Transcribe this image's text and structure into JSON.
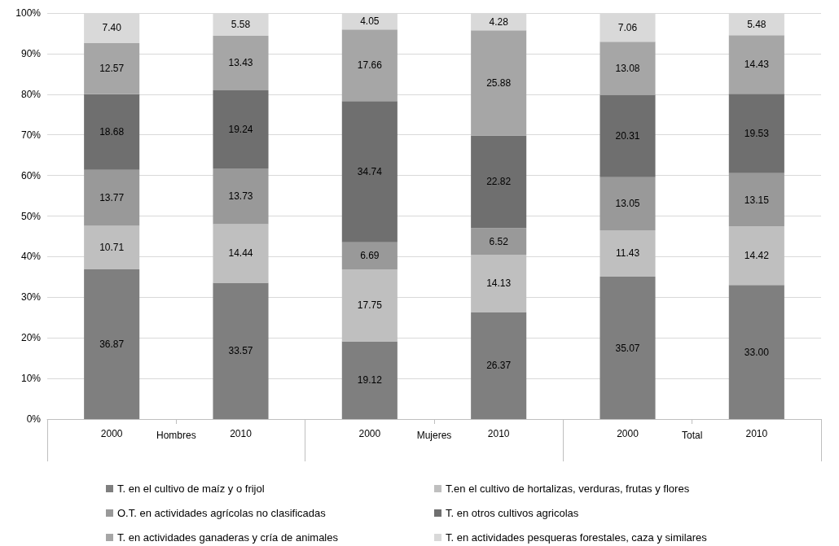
{
  "chart_data": {
    "type": "bar",
    "stacked": true,
    "categories": [
      "2000",
      "2010",
      "2000",
      "2010",
      "2000",
      "2010"
    ],
    "annotations": [
      "Hombres",
      "Mujeres",
      "Total"
    ],
    "ylim": [
      0,
      100
    ],
    "yticks": [
      {
        "value": 0,
        "label": "0%"
      },
      {
        "value": 10,
        "label": "10%"
      },
      {
        "value": 20,
        "label": "20%"
      },
      {
        "value": 30,
        "label": "30%"
      },
      {
        "value": 40,
        "label": "40%"
      },
      {
        "value": 50,
        "label": "50%"
      },
      {
        "value": 60,
        "label": "60%"
      },
      {
        "value": 70,
        "label": "70%"
      },
      {
        "value": 80,
        "label": "80%"
      },
      {
        "value": 90,
        "label": "90%"
      },
      {
        "value": 100,
        "label": "100%"
      }
    ],
    "grid": "y",
    "legend": "bottom",
    "series": [
      {
        "name": "T. en el cultivo de maíz y o frijol",
        "color": "#7f7f7f",
        "values": [
          36.87,
          33.57,
          19.12,
          26.37,
          35.07,
          33.0
        ],
        "value_labels": [
          "36.87",
          "33.57",
          "19.12",
          "26.37",
          "35.07",
          "33.00"
        ]
      },
      {
        "name": "T.en el cultivo de hortalizas, verduras, frutas y flores",
        "color": "#bfbfbf",
        "values": [
          10.71,
          14.44,
          17.75,
          14.13,
          11.43,
          14.42
        ],
        "value_labels": [
          "10.71",
          "14.44",
          "17.75",
          "14.13",
          "11.43",
          "14.42"
        ]
      },
      {
        "name": "O.T. en actividades agrícolas no clasificadas",
        "color": "#999999",
        "values": [
          13.77,
          13.73,
          6.69,
          6.52,
          13.05,
          13.15
        ],
        "value_labels": [
          "13.77",
          "13.73",
          "6.69",
          "6.52",
          "13.05",
          "13.15"
        ]
      },
      {
        "name": "T. en otros cultivos agricolas",
        "color": "#6f6f6f",
        "values": [
          18.68,
          19.24,
          34.74,
          22.82,
          20.31,
          19.53
        ],
        "value_labels": [
          "18.68",
          "19.24",
          "34.74",
          "22.82",
          "20.31",
          "19.53"
        ]
      },
      {
        "name": "T. en actividades ganaderas y cría de animales",
        "color": "#a6a6a6",
        "values": [
          12.57,
          13.43,
          17.66,
          25.88,
          13.08,
          14.43
        ],
        "value_labels": [
          "12.57",
          "13.43",
          "17.66",
          "25.88",
          "13.08",
          "14.43"
        ]
      },
      {
        "name": "T. en actividades pesqueras forestales, caza y similares",
        "color": "#d9d9d9",
        "values": [
          7.4,
          5.58,
          4.05,
          4.28,
          7.06,
          5.48
        ],
        "value_labels": [
          "7.40",
          "5.58",
          "4.05",
          "4.28",
          "7.06",
          "5.48"
        ]
      }
    ]
  }
}
